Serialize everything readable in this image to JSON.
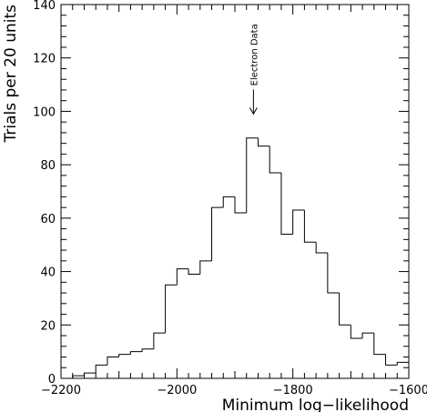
{
  "chart_data": {
    "type": "bar",
    "style": "step-histogram",
    "xlabel": "Minimum log−likelihood",
    "ylabel": "Trials per 20 units",
    "xlim": [
      -2200,
      -1600
    ],
    "ylim": [
      0,
      140
    ],
    "grid": false,
    "x_ticks": [
      -2200,
      -2000,
      -1800,
      -1600
    ],
    "x_tick_labels": [
      "−2200",
      "−2000",
      "−1800",
      "−1600"
    ],
    "y_ticks": [
      0,
      20,
      40,
      60,
      80,
      100,
      120,
      140
    ],
    "y_tick_labels": [
      "0",
      "20",
      "40",
      "60",
      "80",
      "100",
      "120",
      "140"
    ],
    "bin_width": 20,
    "bin_start": -2180,
    "values": [
      1,
      2,
      5,
      8,
      9,
      10,
      11,
      17,
      35,
      41,
      39,
      44,
      64,
      68,
      62,
      90,
      87,
      77,
      54,
      63,
      51,
      47,
      32,
      20,
      15,
      17,
      9,
      5,
      6
    ],
    "annotation": {
      "text": "Electron Data",
      "x": -1868,
      "y": 99
    }
  }
}
